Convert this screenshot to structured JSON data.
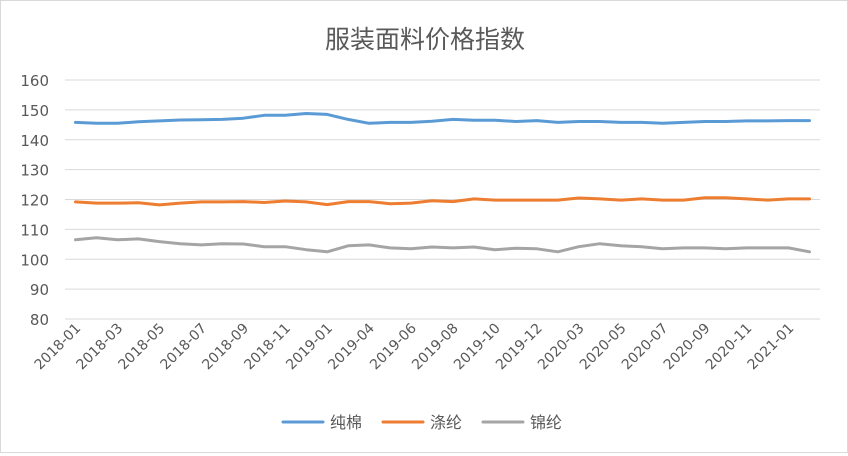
{
  "chart_data": {
    "type": "line",
    "title": "服装面料价格指数",
    "xlabel": "",
    "ylabel": "",
    "ylim": [
      80,
      160
    ],
    "yticks": [
      80,
      90,
      100,
      110,
      120,
      130,
      140,
      150,
      160
    ],
    "grid": true,
    "legend_position": "bottom",
    "x": [
      "2018-01",
      "2018-02",
      "2018-03",
      "2018-04",
      "2018-05",
      "2018-06",
      "2018-07",
      "2018-08",
      "2018-09",
      "2018-10",
      "2018-11",
      "2018-12",
      "2019-01",
      "2019-03",
      "2019-04",
      "2019-05",
      "2019-06",
      "2019-07",
      "2019-08",
      "2019-09",
      "2019-10",
      "2019-11",
      "2019-12",
      "2020-02",
      "2020-03",
      "2020-04",
      "2020-05",
      "2020-06",
      "2020-07",
      "2020-08",
      "2020-09",
      "2020-10",
      "2020-11",
      "2020-12",
      "2021-01",
      "2021-02"
    ],
    "xtick_labels": [
      "2018-01",
      "2018-03",
      "2018-05",
      "2018-07",
      "2018-09",
      "2018-11",
      "2019-01",
      "2019-04",
      "2019-06",
      "2019-08",
      "2019-10",
      "2019-12",
      "2020-03",
      "2020-05",
      "2020-07",
      "2020-09",
      "2020-11",
      "2021-01"
    ],
    "series": [
      {
        "name": "纯棉",
        "color": "#5b9bd5",
        "values": [
          145.8,
          145.5,
          145.5,
          146.0,
          146.3,
          146.6,
          146.7,
          146.8,
          147.2,
          148.2,
          148.2,
          148.8,
          148.5,
          146.8,
          145.5,
          145.8,
          145.8,
          146.2,
          146.8,
          146.5,
          146.5,
          146.1,
          146.4,
          145.8,
          146.1,
          146.1,
          145.8,
          145.8,
          145.5,
          145.8,
          146.1,
          146.1,
          146.3,
          146.3,
          146.4,
          146.4
        ]
      },
      {
        "name": "涤纶",
        "color": "#ed7d31",
        "values": [
          119.2,
          118.8,
          118.8,
          118.9,
          118.2,
          118.8,
          119.2,
          119.2,
          119.3,
          119.0,
          119.5,
          119.2,
          118.3,
          119.3,
          119.3,
          118.6,
          118.8,
          119.6,
          119.3,
          120.2,
          119.8,
          119.8,
          119.8,
          119.8,
          120.5,
          120.2,
          119.8,
          120.2,
          119.8,
          119.8,
          120.6,
          120.6,
          120.2,
          119.8,
          120.2,
          120.2
        ]
      },
      {
        "name": "锦纶",
        "color": "#a5a5a5",
        "values": [
          106.5,
          107.2,
          106.5,
          106.8,
          105.9,
          105.2,
          104.8,
          105.2,
          105.1,
          104.2,
          104.2,
          103.2,
          102.5,
          104.5,
          104.8,
          103.8,
          103.5,
          104.1,
          103.8,
          104.1,
          103.2,
          103.7,
          103.5,
          102.5,
          104.2,
          105.2,
          104.5,
          104.2,
          103.5,
          103.8,
          103.8,
          103.5,
          103.8,
          103.8,
          103.8,
          102.5
        ]
      }
    ]
  }
}
